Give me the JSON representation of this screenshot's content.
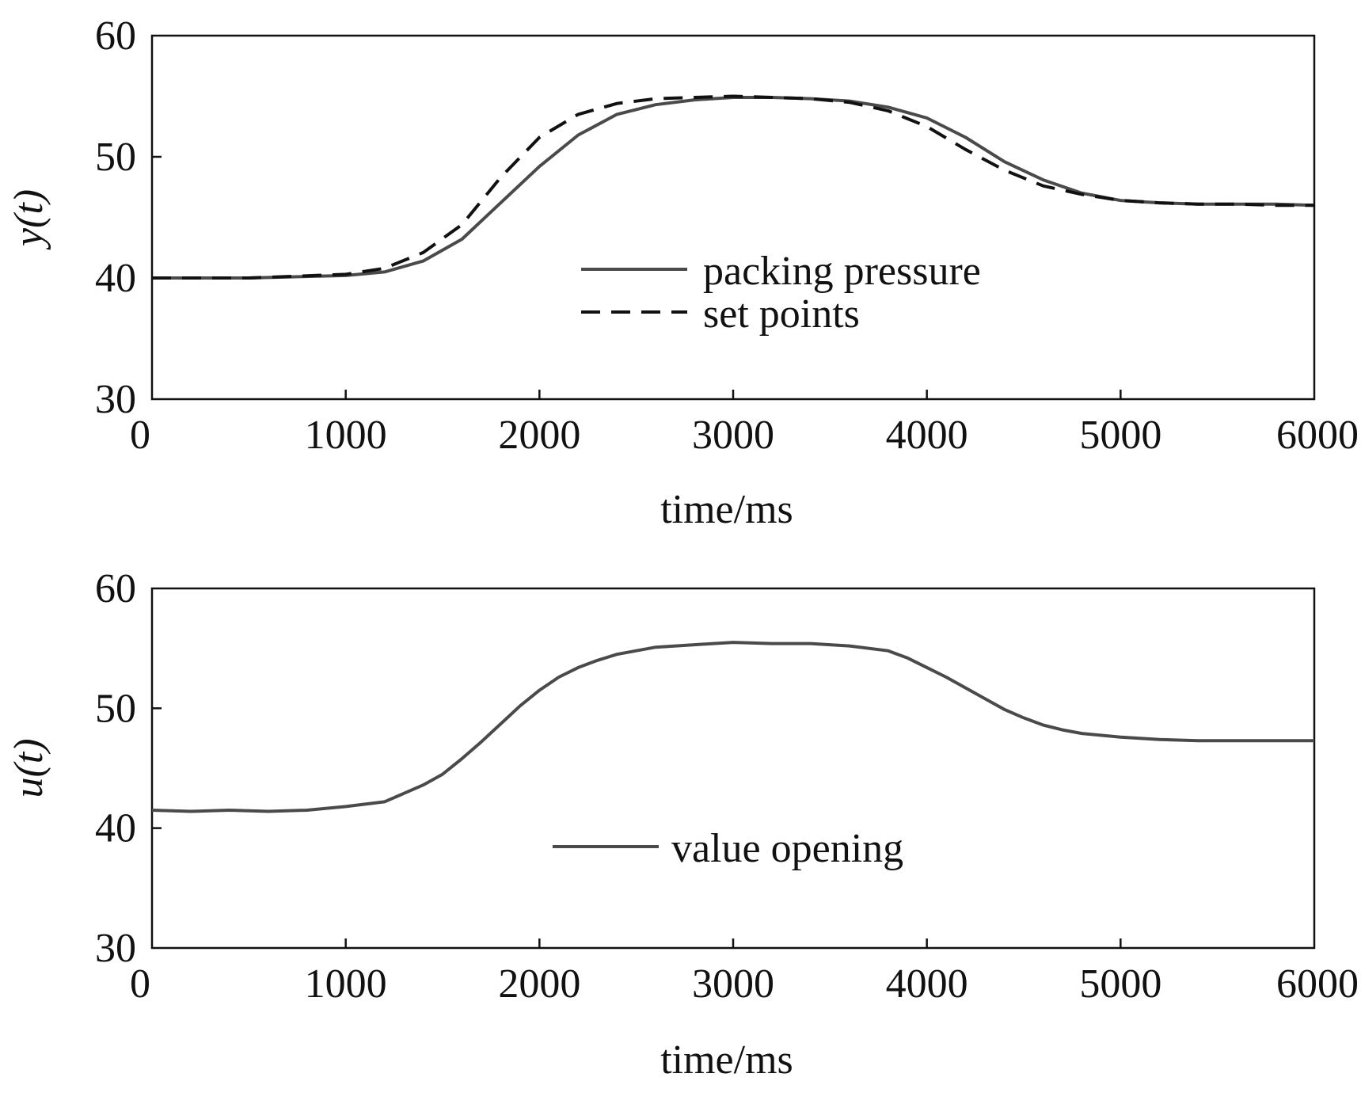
{
  "colors": {
    "solid": "#4a4a4a",
    "dashed": "#111111",
    "axis": "#111111"
  },
  "chart_data": [
    {
      "type": "line",
      "title": "",
      "xlabel": "time/ms",
      "ylabel": "y(t)",
      "xlim": [
        0,
        6000
      ],
      "ylim": [
        30,
        60
      ],
      "xticks": [
        0,
        1000,
        2000,
        3000,
        4000,
        5000,
        6000
      ],
      "yticks": [
        30,
        40,
        50,
        60
      ],
      "grid": false,
      "legend_position": "center",
      "series": [
        {
          "name": "packing pressure",
          "style": "solid",
          "x": [
            0,
            500,
            1000,
            1200,
            1400,
            1600,
            1800,
            2000,
            2200,
            2400,
            2600,
            2800,
            3000,
            3200,
            3400,
            3600,
            3800,
            4000,
            4200,
            4400,
            4600,
            4800,
            5000,
            5200,
            5400,
            5600,
            5800,
            6000
          ],
          "y": [
            40,
            40,
            40.2,
            40.5,
            41.4,
            43.2,
            46.2,
            49.2,
            51.8,
            53.5,
            54.3,
            54.7,
            54.9,
            54.9,
            54.8,
            54.6,
            54.1,
            53.2,
            51.6,
            49.6,
            48.1,
            47,
            46.4,
            46.2,
            46.1,
            46.1,
            46.1,
            46
          ]
        },
        {
          "name": "set points",
          "style": "dashed",
          "x": [
            0,
            500,
            1000,
            1200,
            1400,
            1600,
            1800,
            2000,
            2200,
            2400,
            2600,
            2800,
            3000,
            3200,
            3400,
            3600,
            3800,
            4000,
            4200,
            4400,
            4600,
            4800,
            5000,
            5200,
            5400,
            5600,
            5800,
            6000
          ],
          "y": [
            40,
            40,
            40.3,
            40.8,
            42.1,
            44.4,
            48.3,
            51.6,
            53.5,
            54.4,
            54.8,
            54.9,
            55,
            54.9,
            54.8,
            54.5,
            53.8,
            52.5,
            50.6,
            48.9,
            47.6,
            46.9,
            46.4,
            46.2,
            46.1,
            46.1,
            46,
            46
          ]
        }
      ]
    },
    {
      "type": "line",
      "title": "",
      "xlabel": "time/ms",
      "ylabel": "u(t)",
      "xlim": [
        0,
        6000
      ],
      "ylim": [
        30,
        60
      ],
      "xticks": [
        0,
        1000,
        2000,
        3000,
        4000,
        5000,
        6000
      ],
      "yticks": [
        30,
        40,
        50,
        60
      ],
      "grid": false,
      "legend_position": "center",
      "series": [
        {
          "name": "value opening",
          "style": "solid",
          "x": [
            0,
            200,
            400,
            600,
            800,
            1000,
            1200,
            1300,
            1400,
            1500,
            1600,
            1700,
            1800,
            1900,
            2000,
            2100,
            2200,
            2300,
            2400,
            2600,
            2800,
            3000,
            3200,
            3400,
            3600,
            3800,
            3900,
            4000,
            4100,
            4200,
            4300,
            4400,
            4500,
            4600,
            4700,
            4800,
            5000,
            5200,
            5400,
            5600,
            5800,
            6000
          ],
          "y": [
            41.5,
            41.4,
            41.5,
            41.4,
            41.5,
            41.8,
            42.2,
            42.9,
            43.6,
            44.5,
            45.8,
            47.2,
            48.7,
            50.2,
            51.5,
            52.6,
            53.4,
            54,
            54.5,
            55.1,
            55.3,
            55.5,
            55.4,
            55.4,
            55.2,
            54.8,
            54.2,
            53.4,
            52.6,
            51.7,
            50.8,
            49.9,
            49.2,
            48.6,
            48.2,
            47.9,
            47.6,
            47.4,
            47.3,
            47.3,
            47.3,
            47.3
          ]
        }
      ]
    }
  ]
}
